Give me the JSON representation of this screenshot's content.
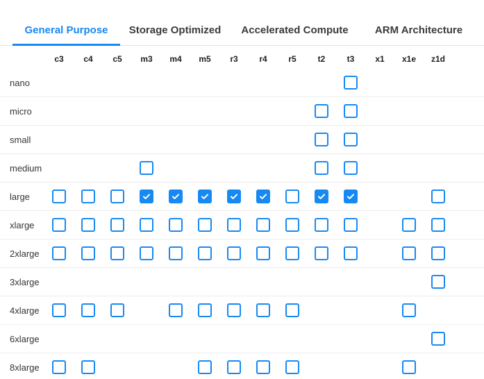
{
  "tabs": [
    {
      "label": "General Purpose",
      "active": true
    },
    {
      "label": "Storage Optimized",
      "active": false
    },
    {
      "label": "Accelerated Compute",
      "active": false
    },
    {
      "label": "ARM Architecture",
      "active": false
    }
  ],
  "matrix": {
    "columns": [
      "c3",
      "c4",
      "c5",
      "m3",
      "m4",
      "m5",
      "r3",
      "r4",
      "r5",
      "t2",
      "t3",
      "x1",
      "x1e",
      "z1d"
    ],
    "rows": [
      {
        "label": "nano",
        "cells": {
          "t3": false
        }
      },
      {
        "label": "micro",
        "cells": {
          "t2": false,
          "t3": false
        }
      },
      {
        "label": "small",
        "cells": {
          "t2": false,
          "t3": false
        }
      },
      {
        "label": "medium",
        "cells": {
          "m3": false,
          "t2": false,
          "t3": false
        }
      },
      {
        "label": "large",
        "cells": {
          "c3": false,
          "c4": false,
          "c5": false,
          "m3": true,
          "m4": true,
          "m5": true,
          "r3": true,
          "r4": true,
          "r5": false,
          "t2": true,
          "t3": true,
          "z1d": false
        }
      },
      {
        "label": "xlarge",
        "cells": {
          "c3": false,
          "c4": false,
          "c5": false,
          "m3": false,
          "m4": false,
          "m5": false,
          "r3": false,
          "r4": false,
          "r5": false,
          "t2": false,
          "t3": false,
          "x1e": false,
          "z1d": false
        }
      },
      {
        "label": "2xlarge",
        "cells": {
          "c3": false,
          "c4": false,
          "c5": false,
          "m3": false,
          "m4": false,
          "m5": false,
          "r3": false,
          "r4": false,
          "r5": false,
          "t2": false,
          "t3": false,
          "x1e": false,
          "z1d": false
        }
      },
      {
        "label": "3xlarge",
        "cells": {
          "z1d": false
        }
      },
      {
        "label": "4xlarge",
        "cells": {
          "c3": false,
          "c4": false,
          "c5": false,
          "m4": false,
          "m5": false,
          "r3": false,
          "r4": false,
          "r5": false,
          "x1e": false
        }
      },
      {
        "label": "6xlarge",
        "cells": {
          "z1d": false
        }
      },
      {
        "label": "8xlarge",
        "cells": {
          "c3": false,
          "c4": false,
          "m5": false,
          "r3": false,
          "r4": false,
          "r5": false,
          "x1e": false
        }
      }
    ]
  },
  "colors": {
    "active_tab": "#1789f2",
    "inactive_tab": "#3b3b3b",
    "checkbox_border": "#1789f2",
    "checked_fill": "#1789f2",
    "separator": "#ededed",
    "tab_border": "#e2e2e2"
  }
}
